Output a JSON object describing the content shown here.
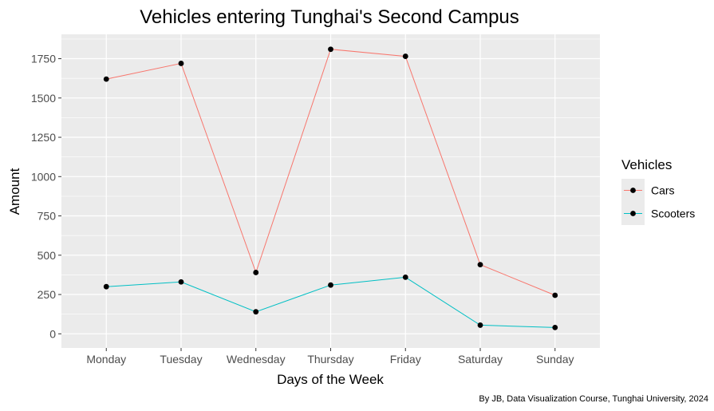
{
  "chart_data": {
    "type": "line",
    "title": "Vehicles entering Tunghai's Second Campus",
    "xlabel": "Days of the Week",
    "ylabel": "Amount",
    "categories": [
      "Monday",
      "Tuesday",
      "Wednesday",
      "Thursday",
      "Friday",
      "Saturday",
      "Sunday"
    ],
    "series": [
      {
        "name": "Cars",
        "color": "#F8766D",
        "values": [
          1620,
          1720,
          390,
          1810,
          1765,
          440,
          245
        ]
      },
      {
        "name": "Scooters",
        "color": "#00BFC4",
        "values": [
          300,
          330,
          140,
          310,
          360,
          55,
          40
        ]
      }
    ],
    "yticks": [
      0,
      250,
      500,
      750,
      1000,
      1250,
      1500,
      1750
    ],
    "ylim": [
      -90,
      1905
    ],
    "legend_title": "Vehicles",
    "legend_position": "right",
    "grid": true,
    "point_color": "#000000",
    "panel_color": "#EBEBEB",
    "caption": "By JB, Data Visualization Course, Tunghai University, 2024"
  }
}
